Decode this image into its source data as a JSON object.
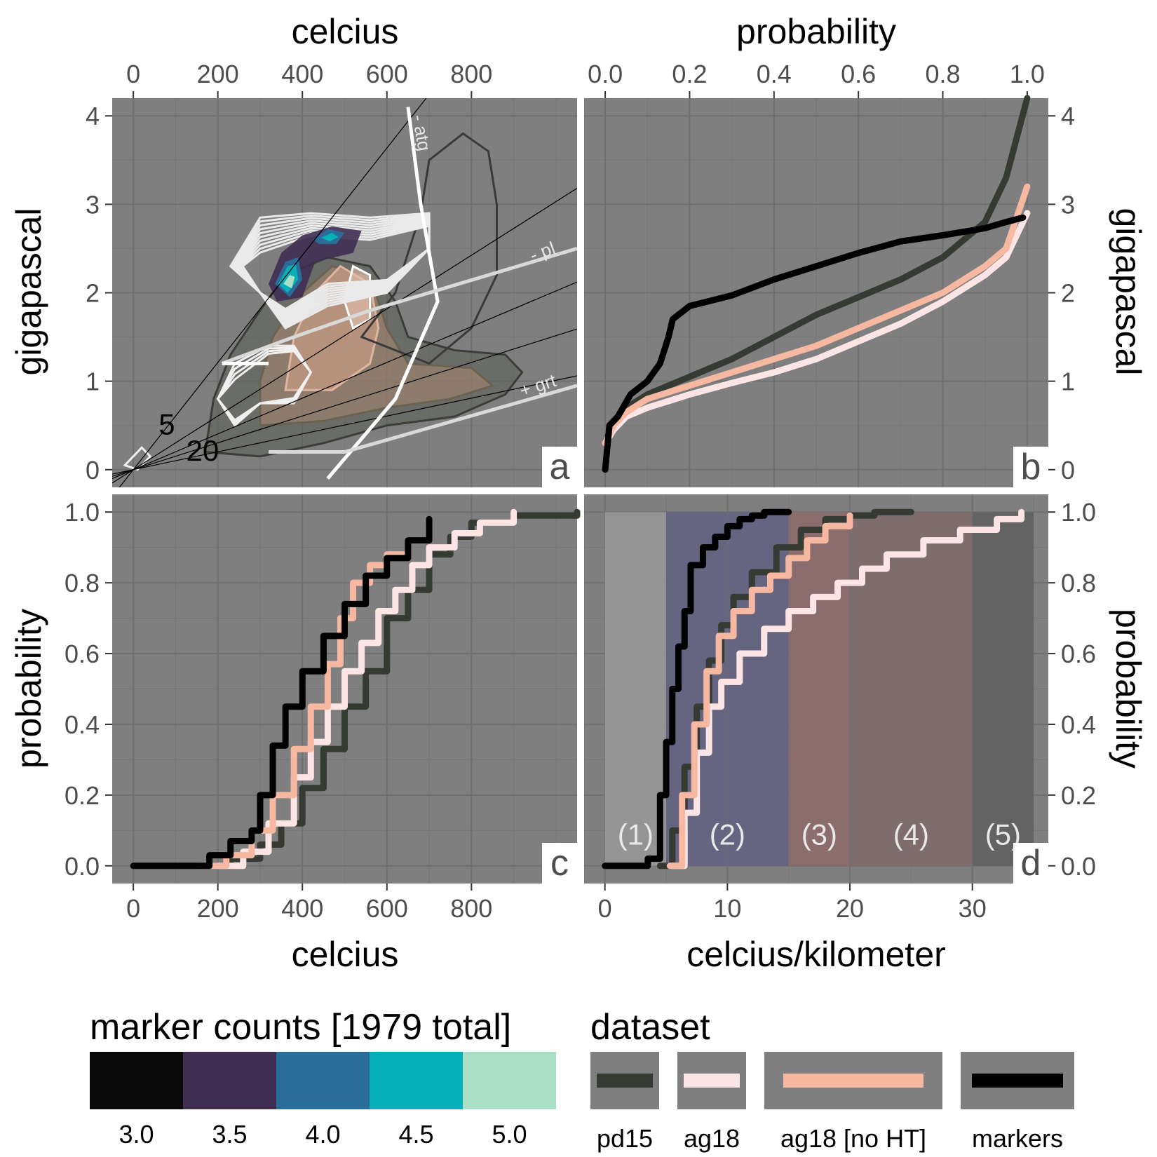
{
  "colors": {
    "panel_bg": "#7f7f7f",
    "grid_major": "#707070",
    "grid_minor": "#767676",
    "pd15": "#353a33",
    "ag18": "#fde5e5",
    "ag18_noHT": "#f7b8a2",
    "markers": "#000000",
    "marker_scale": [
      "#0a0a0a",
      "#3f2d52",
      "#2a6c9a",
      "#05b0b8",
      "#a8dfc6"
    ],
    "regimes": [
      "#979797",
      "#636282",
      "#8e6b6b",
      "#7f6c6c",
      "#616161"
    ]
  },
  "chart_data": [
    {
      "panel": "a",
      "type": "contour",
      "xlabel": "celcius",
      "ylabel": "gigapascal",
      "xlim": [
        -50,
        1050
      ],
      "ylim": [
        -0.2,
        4.2
      ],
      "xticks": [
        "0",
        "200",
        "400",
        "600",
        "800"
      ],
      "yticks": [
        "0",
        "1",
        "2",
        "3",
        "4"
      ],
      "annotations": [
        "- atg",
        "- pl",
        "+ grt",
        "5",
        "20"
      ],
      "panel_tag": "a",
      "geotherms_c_per_km": [
        5,
        10,
        15,
        20,
        30
      ],
      "boundaries": {
        "atg": [
          [
            460,
            -0.1
          ],
          [
            620,
            0.8
          ],
          [
            720,
            1.9
          ],
          [
            680,
            3.0
          ],
          [
            650,
            4.1
          ]
        ],
        "pl": [
          [
            210,
            1.2
          ],
          [
            380,
            1.5
          ],
          [
            560,
            1.8
          ],
          [
            1050,
            2.5
          ]
        ],
        "grt": [
          [
            320,
            0.2
          ],
          [
            500,
            0.2
          ],
          [
            1050,
            0.95
          ]
        ],
        "pl_low": [
          [
            210,
            1.2
          ],
          [
            320,
            1.2
          ]
        ]
      }
    },
    {
      "panel": "b",
      "type": "line",
      "xlabel": "probability",
      "ylabel": "gigapascal",
      "xlim": [
        -0.05,
        1.05
      ],
      "ylim": [
        -0.2,
        4.2
      ],
      "xticks": [
        "0.0",
        "0.2",
        "0.4",
        "0.6",
        "0.8",
        "1.0"
      ],
      "yticks": [
        "0",
        "1",
        "2",
        "3",
        "4"
      ],
      "panel_tag": "b",
      "series": [
        {
          "key": "pd15",
          "x": [
            0,
            0.02,
            0.05,
            0.1,
            0.2,
            0.3,
            0.4,
            0.5,
            0.6,
            0.7,
            0.8,
            0.9,
            0.95,
            1.0
          ],
          "y": [
            0.3,
            0.55,
            0.7,
            0.85,
            1.05,
            1.25,
            1.5,
            1.75,
            1.95,
            2.15,
            2.4,
            2.8,
            3.3,
            4.2
          ]
        },
        {
          "key": "ag18",
          "x": [
            0,
            0.02,
            0.05,
            0.1,
            0.2,
            0.3,
            0.4,
            0.5,
            0.6,
            0.7,
            0.8,
            0.9,
            0.95,
            1.0
          ],
          "y": [
            0.3,
            0.45,
            0.6,
            0.7,
            0.85,
            0.98,
            1.1,
            1.25,
            1.45,
            1.65,
            1.9,
            2.2,
            2.4,
            2.9
          ]
        },
        {
          "key": "ag18_noHT",
          "x": [
            0,
            0.02,
            0.05,
            0.1,
            0.2,
            0.3,
            0.4,
            0.5,
            0.6,
            0.7,
            0.8,
            0.9,
            0.95,
            1.0
          ],
          "y": [
            0.3,
            0.5,
            0.65,
            0.8,
            0.95,
            1.1,
            1.25,
            1.4,
            1.6,
            1.8,
            2.0,
            2.3,
            2.5,
            3.2
          ]
        },
        {
          "key": "markers",
          "x": [
            0,
            0.01,
            0.03,
            0.06,
            0.1,
            0.13,
            0.15,
            0.16,
            0.2,
            0.3,
            0.4,
            0.5,
            0.6,
            0.7,
            0.8,
            0.9,
            0.95,
            0.99
          ],
          "y": [
            0.0,
            0.5,
            0.6,
            0.85,
            1.0,
            1.2,
            1.5,
            1.7,
            1.85,
            1.97,
            2.15,
            2.3,
            2.45,
            2.58,
            2.65,
            2.73,
            2.8,
            2.85
          ]
        }
      ]
    },
    {
      "panel": "c",
      "type": "line",
      "xlabel": "celcius",
      "ylabel": "probability",
      "xlim": [
        -50,
        1050
      ],
      "ylim": [
        -0.05,
        1.05
      ],
      "xticks": [
        "0",
        "200",
        "400",
        "600",
        "800"
      ],
      "yticks": [
        "0.0",
        "0.2",
        "0.4",
        "0.6",
        "0.8",
        "1.0"
      ],
      "panel_tag": "c",
      "series": [
        {
          "key": "pd15",
          "x": [
            180,
            230,
            300,
            350,
            400,
            450,
            500,
            550,
            600,
            650,
            700,
            750,
            800,
            900,
            1050
          ],
          "y": [
            0.0,
            0.02,
            0.06,
            0.12,
            0.22,
            0.33,
            0.45,
            0.55,
            0.7,
            0.78,
            0.88,
            0.93,
            0.97,
            0.99,
            1.0
          ]
        },
        {
          "key": "ag18",
          "x": [
            200,
            260,
            320,
            380,
            420,
            460,
            500,
            540,
            580,
            620,
            660,
            700,
            760,
            820,
            900
          ],
          "y": [
            0.0,
            0.04,
            0.12,
            0.25,
            0.35,
            0.45,
            0.55,
            0.63,
            0.72,
            0.78,
            0.85,
            0.9,
            0.94,
            0.97,
            1.0
          ]
        },
        {
          "key": "ag18_noHT",
          "x": [
            150,
            220,
            280,
            330,
            380,
            420,
            460,
            490,
            520,
            560,
            600,
            650,
            700
          ],
          "y": [
            0.0,
            0.03,
            0.1,
            0.2,
            0.33,
            0.45,
            0.57,
            0.7,
            0.8,
            0.85,
            0.88,
            0.92,
            0.97
          ]
        },
        {
          "key": "markers",
          "x": [
            0,
            100,
            180,
            230,
            280,
            300,
            330,
            360,
            400,
            450,
            500,
            550,
            600,
            650,
            700
          ],
          "y": [
            0.0,
            0.0,
            0.03,
            0.07,
            0.1,
            0.2,
            0.34,
            0.45,
            0.55,
            0.65,
            0.74,
            0.82,
            0.87,
            0.92,
            0.98
          ]
        }
      ]
    },
    {
      "panel": "d",
      "type": "line",
      "xlabel": "celcius/kilometer",
      "ylabel": "probability",
      "xlim": [
        -1.7,
        36.2
      ],
      "ylim": [
        -0.05,
        1.05
      ],
      "xticks": [
        "0",
        "10",
        "20",
        "30"
      ],
      "yticks": [
        "0.0",
        "0.2",
        "0.4",
        "0.6",
        "0.8",
        "1.0"
      ],
      "panel_tag": "d",
      "regimes": [
        {
          "label": "(1)",
          "from": 0,
          "to": 5
        },
        {
          "label": "(2)",
          "from": 5,
          "to": 15
        },
        {
          "label": "(3)",
          "from": 15,
          "to": 20
        },
        {
          "label": "(4)",
          "from": 20,
          "to": 30
        },
        {
          "label": "(5)",
          "from": 30,
          "to": 35
        }
      ],
      "series": [
        {
          "key": "pd15",
          "x": [
            4.5,
            5.5,
            6.5,
            7.5,
            8.5,
            9.5,
            10.5,
            12,
            14,
            16,
            18,
            20,
            22,
            25
          ],
          "y": [
            0.0,
            0.1,
            0.28,
            0.45,
            0.58,
            0.68,
            0.76,
            0.83,
            0.9,
            0.95,
            0.98,
            0.99,
            1.0,
            1.0
          ]
        },
        {
          "key": "ag18",
          "x": [
            5.5,
            6.5,
            7.5,
            8.5,
            9.5,
            11,
            13,
            15,
            17,
            19,
            21,
            23,
            26,
            29,
            32,
            34
          ],
          "y": [
            0.0,
            0.15,
            0.32,
            0.45,
            0.52,
            0.6,
            0.67,
            0.72,
            0.76,
            0.8,
            0.84,
            0.88,
            0.92,
            0.95,
            0.98,
            1.0
          ]
        },
        {
          "key": "ag18_noHT",
          "x": [
            5.3,
            6.3,
            7.3,
            8.3,
            9.3,
            10.5,
            12,
            13.5,
            15,
            16.5,
            18,
            20
          ],
          "y": [
            0.0,
            0.2,
            0.4,
            0.55,
            0.65,
            0.72,
            0.78,
            0.82,
            0.87,
            0.92,
            0.96,
            0.99
          ]
        },
        {
          "key": "markers",
          "x": [
            0,
            2,
            3.5,
            4.5,
            5.0,
            5.5,
            6.0,
            6.5,
            7.0,
            8,
            9,
            10,
            11,
            12,
            13,
            15
          ],
          "y": [
            0.0,
            0.0,
            0.02,
            0.2,
            0.35,
            0.5,
            0.62,
            0.72,
            0.85,
            0.9,
            0.93,
            0.96,
            0.98,
            0.99,
            1.0,
            1.0
          ]
        }
      ]
    }
  ],
  "legend_counts": {
    "title": "marker counts [1979 total]",
    "labels": [
      "3.0",
      "3.5",
      "4.0",
      "4.5",
      "5.0"
    ]
  },
  "legend_dataset": {
    "title": "dataset",
    "items": [
      {
        "key": "pd15",
        "label": "pd15"
      },
      {
        "key": "ag18",
        "label": "ag18"
      },
      {
        "key": "ag18_noHT",
        "label": "ag18 [no HT]"
      },
      {
        "key": "markers",
        "label": "markers"
      }
    ]
  }
}
